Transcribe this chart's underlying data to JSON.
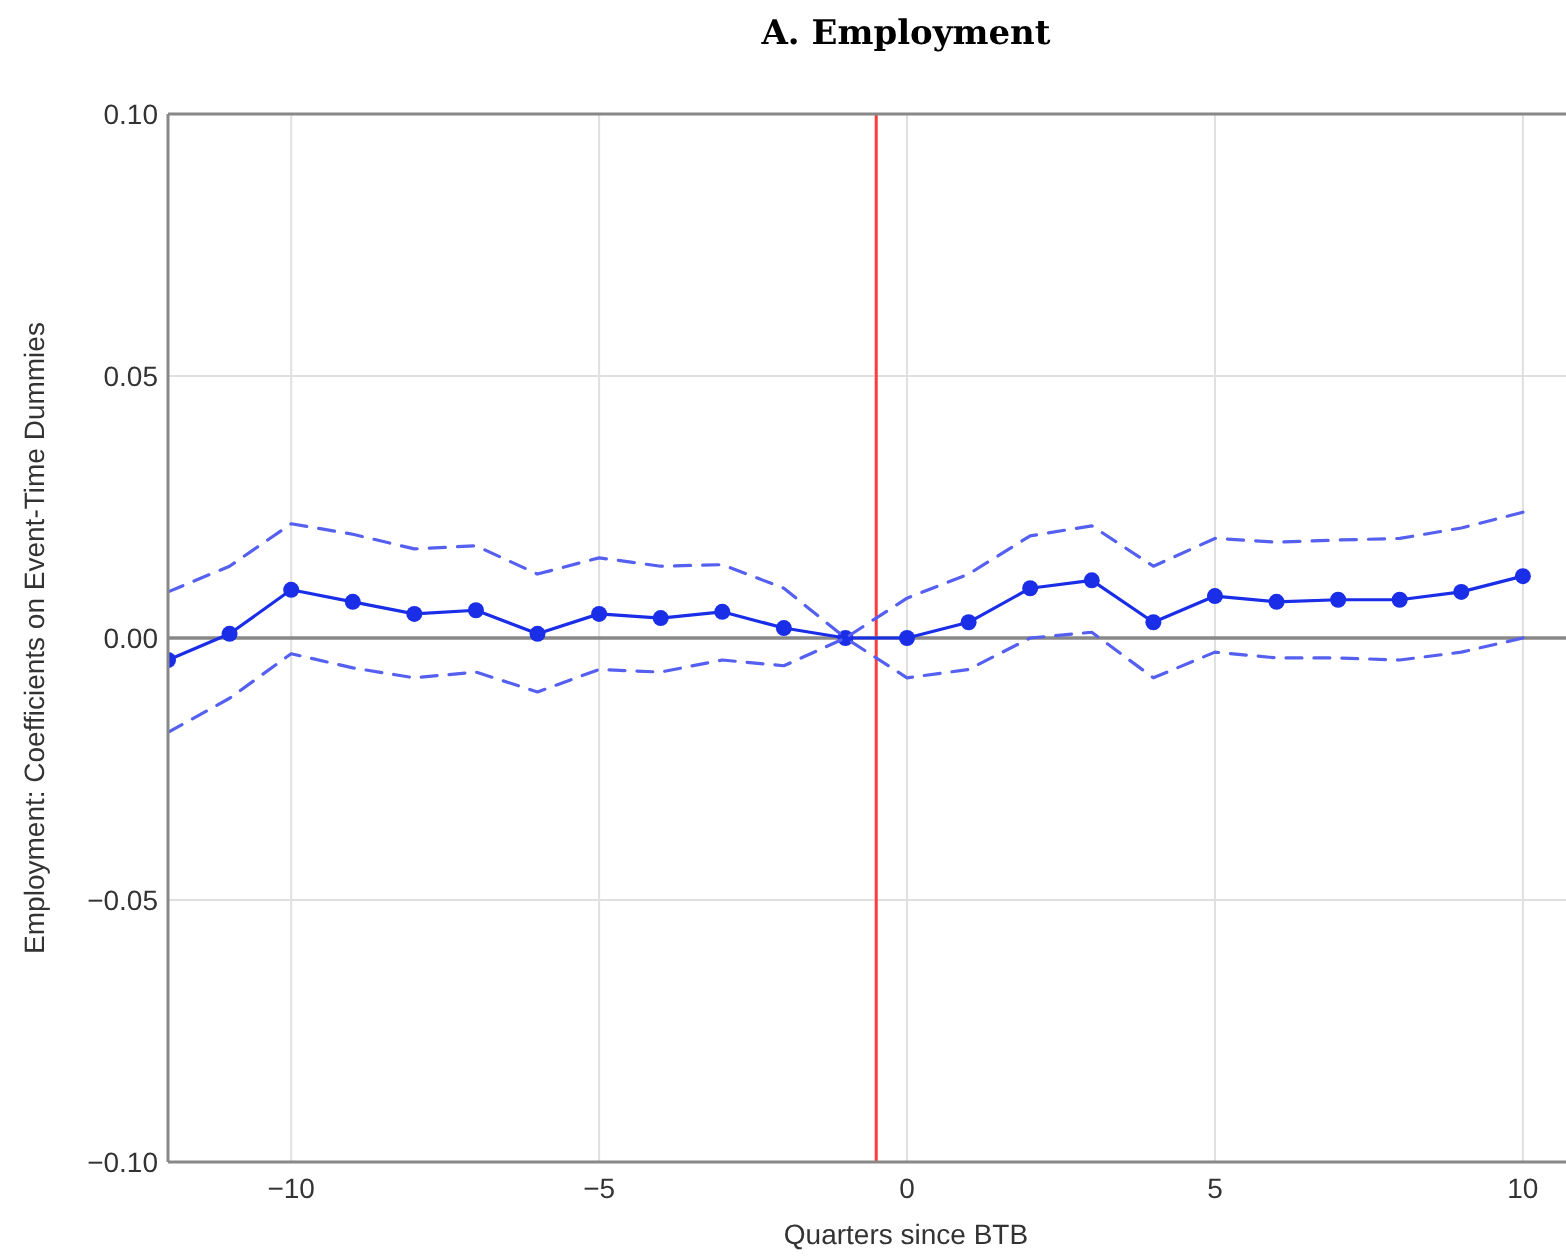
{
  "chart_data": {
    "type": "line",
    "title": "A. Employment",
    "xlabel": "Quarters since BTB",
    "ylabel": "Employment: Coefficients on Event-Time Dummies",
    "x": [
      -12,
      -11,
      -10,
      -9,
      -8,
      -7,
      -6,
      -5,
      -4,
      -3,
      -2,
      -1,
      0,
      1,
      2,
      3,
      4,
      5,
      6,
      7,
      8,
      9,
      10
    ],
    "series": [
      {
        "color": "#1a2ee8",
        "marker": "circle",
        "line_style": "solid",
        "values": [
          -0.0042,
          0.0008,
          0.0092,
          0.0069,
          0.0046,
          0.0053,
          0.0008,
          0.0046,
          0.0038,
          0.005,
          0.0019,
          0,
          0,
          0.003,
          0.0095,
          0.011,
          0.003,
          0.008,
          0.0069,
          0.0073,
          0.0073,
          0.0088,
          0.0118
        ]
      },
      {
        "color": "#5560f0",
        "marker": "none",
        "line_style": "dashed",
        "values": [
          0.0088,
          0.0137,
          0.0218,
          0.0198,
          0.017,
          0.0176,
          0.0122,
          0.0153,
          0.0137,
          0.014,
          0.0095,
          0,
          0.0076,
          0.0122,
          0.0195,
          0.0214,
          0.0137,
          0.019,
          0.0183,
          0.0187,
          0.019,
          0.021,
          0.024
        ]
      },
      {
        "color": "#5560f0",
        "marker": "none",
        "line_style": "dashed",
        "values": [
          -0.018,
          -0.0115,
          -0.003,
          -0.0057,
          -0.0076,
          -0.0065,
          -0.0103,
          -0.006,
          -0.0065,
          -0.0042,
          -0.0053,
          0,
          -0.0076,
          -0.006,
          0,
          0.0011,
          -0.0076,
          -0.0027,
          -0.0038,
          -0.0038,
          -0.0042,
          -0.0027,
          0
        ]
      }
    ],
    "xlim": [
      -12,
      10.7
    ],
    "xticks": [
      {
        "value": -10,
        "label": "−10"
      },
      {
        "value": -5,
        "label": "−5"
      },
      0,
      5,
      10
    ],
    "ylim": [
      -0.1,
      0.1
    ],
    "yticks": [
      {
        "value": -0.1,
        "label": "−0.10"
      },
      {
        "value": -0.05,
        "label": "−0.05"
      },
      {
        "value": 0,
        "label": "0.00"
      },
      {
        "value": 0.05,
        "label": "0.05"
      },
      {
        "value": 0.1,
        "label": "0.10"
      }
    ],
    "grid": true,
    "ref_lines": [
      {
        "axis": "x",
        "value": -0.5,
        "color": "#ff3b3b"
      },
      {
        "axis": "y",
        "value": 0,
        "color": "#888888"
      }
    ]
  }
}
